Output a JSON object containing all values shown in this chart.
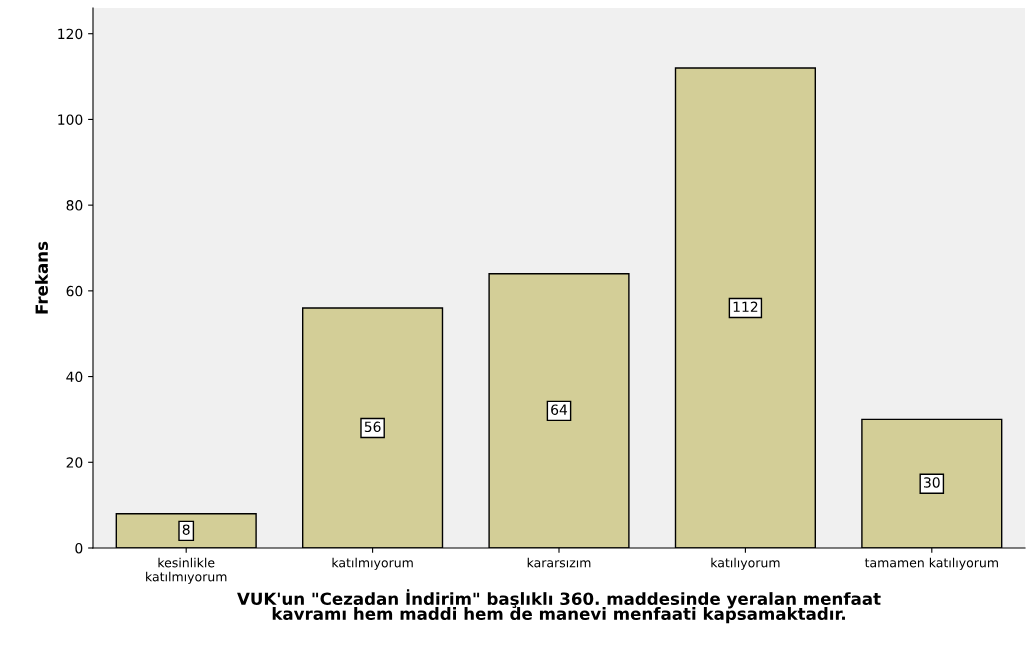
{
  "chart_data": {
    "type": "bar",
    "xlabel": "VUK'un \"Cezadan İndirim\" başlıklı 360. maddesinde yeralan menfaat\nkavramı hem maddi hem de manevi menfaati kapsamaktadır.",
    "ylabel": "Frekans",
    "categories": [
      "kesinlikle\nkatılmıyorum",
      "katılmıyorum",
      "kararsızım",
      "katılıyorum",
      "tamamen katılıyorum"
    ],
    "values": [
      8,
      56,
      64,
      112,
      30
    ],
    "color": "#d3ce97",
    "ylim": [
      0,
      126
    ],
    "yticks": [
      0,
      20,
      40,
      60,
      80,
      100,
      120
    ],
    "grid": false,
    "data_labels": true
  }
}
